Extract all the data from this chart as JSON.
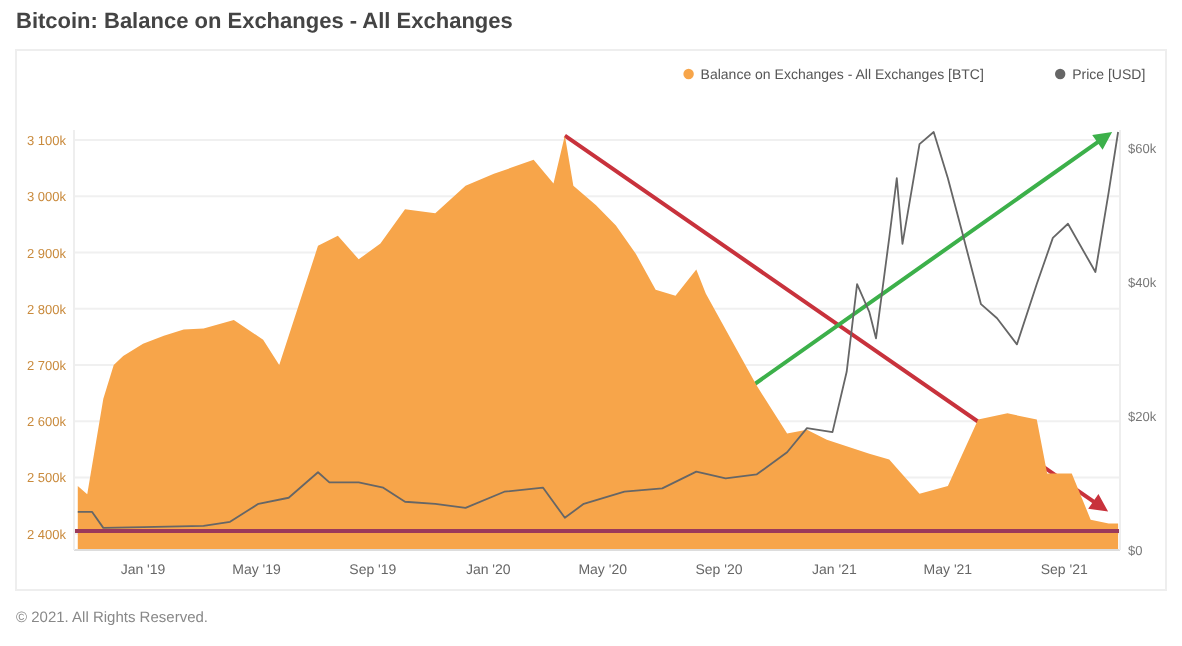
{
  "chart_data": {
    "type": "area",
    "title": "Bitcoin: Balance on Exchanges - All Exchanges",
    "annotations": [
      "© 2021. All Rights Reserved."
    ],
    "xlim": [
      "2018-10-20",
      "2021-10-30"
    ],
    "xticks": [
      {
        "value": "2019-01-01",
        "label": "Jan '19"
      },
      {
        "value": "2019-05-01",
        "label": "May '19"
      },
      {
        "value": "2019-09-01",
        "label": "Sep '19"
      },
      {
        "value": "2020-01-01",
        "label": "Jan '20"
      },
      {
        "value": "2020-05-01",
        "label": "May '20"
      },
      {
        "value": "2020-09-01",
        "label": "Sep '20"
      },
      {
        "value": "2021-01-01",
        "label": "Jan '21"
      },
      {
        "value": "2021-05-01",
        "label": "May '21"
      },
      {
        "value": "2021-09-01",
        "label": "Sep '21"
      }
    ],
    "ylim": [
      2371000,
      3118000
    ],
    "yticks": [
      {
        "value": 2400000,
        "label": "2 400k"
      },
      {
        "value": 2500000,
        "label": "2 500k"
      },
      {
        "value": 2600000,
        "label": "2 600k"
      },
      {
        "value": 2700000,
        "label": "2 700k"
      },
      {
        "value": 2800000,
        "label": "2 800k"
      },
      {
        "value": 2900000,
        "label": "2 900k"
      },
      {
        "value": 3000000,
        "label": "3 000k"
      },
      {
        "value": 3100000,
        "label": "3 100k"
      }
    ],
    "y2lim": [
      0,
      62700
    ],
    "y2ticks": [
      {
        "value": 0,
        "label": "$0"
      },
      {
        "value": 20000,
        "label": "$20k"
      },
      {
        "value": 40000,
        "label": "$40k"
      },
      {
        "value": 60000,
        "label": "$60k"
      }
    ],
    "grid": "y",
    "legend": "top right",
    "ref_lines": [
      {
        "axis": "y",
        "value": 2405000,
        "color": "#9b3a5a"
      }
    ],
    "series": [
      {
        "name": "Balance on Exchanges - All Exchanges [BTC]",
        "color": "#f7a54a",
        "x": [
          "2018-10-24",
          "2018-11-03",
          "2018-11-20",
          "2018-12-01",
          "2018-12-11",
          "2019-01-01",
          "2019-01-23",
          "2019-02-13",
          "2019-03-06",
          "2019-04-07",
          "2019-05-08",
          "2019-05-25",
          "2019-07-05",
          "2019-07-26",
          "2019-08-17",
          "2019-09-09",
          "2019-10-05",
          "2019-11-06",
          "2019-12-08",
          "2020-01-07",
          "2020-02-18",
          "2020-03-10",
          "2020-03-22",
          "2020-03-31",
          "2020-04-24",
          "2020-05-15",
          "2020-06-05",
          "2020-06-26",
          "2020-07-17",
          "2020-08-08",
          "2020-08-18",
          "2020-09-14",
          "2020-10-11",
          "2020-11-12",
          "2020-12-03",
          "2020-12-24",
          "2021-02-07",
          "2021-02-28",
          "2021-04-01",
          "2021-05-01",
          "2021-06-02",
          "2021-07-03",
          "2021-08-03",
          "2021-08-14",
          "2021-09-09",
          "2021-09-29",
          "2021-10-18",
          "2021-10-28"
        ],
        "values": [
          2485000,
          2470000,
          2640000,
          2700000,
          2716000,
          2738000,
          2752000,
          2763000,
          2765000,
          2780000,
          2745000,
          2700000,
          2912000,
          2930000,
          2888000,
          2916000,
          2977000,
          2970000,
          3019000,
          3040000,
          3065000,
          3023000,
          3108000,
          3019000,
          2984000,
          2948000,
          2898000,
          2834000,
          2823000,
          2870000,
          2827000,
          2745000,
          2663000,
          2578000,
          2585000,
          2567000,
          2542000,
          2532000,
          2471000,
          2485000,
          2603000,
          2614000,
          2603000,
          2507000,
          2507000,
          2425000,
          2418000,
          2418000
        ]
      },
      {
        "name": "Price [USD]",
        "type": "line",
        "axis": "y2",
        "color": "#666666",
        "x": [
          "2018-10-24",
          "2018-11-08",
          "2018-11-20",
          "2019-01-01",
          "2019-03-06",
          "2019-04-03",
          "2019-05-03",
          "2019-06-04",
          "2019-07-05",
          "2019-07-17",
          "2019-08-17",
          "2019-09-12",
          "2019-10-05",
          "2019-11-06",
          "2019-12-08",
          "2020-01-18",
          "2020-02-28",
          "2020-03-22",
          "2020-04-11",
          "2020-05-24",
          "2020-07-03",
          "2020-08-08",
          "2020-09-08",
          "2020-10-11",
          "2020-11-12",
          "2020-12-03",
          "2020-12-30",
          "2021-01-14",
          "2021-01-25",
          "2021-02-07",
          "2021-02-14",
          "2021-02-28",
          "2021-03-08",
          "2021-03-14",
          "2021-04-01",
          "2021-04-16",
          "2021-05-01",
          "2021-05-16",
          "2021-06-05",
          "2021-06-22",
          "2021-07-13",
          "2021-08-03",
          "2021-08-20",
          "2021-09-05",
          "2021-10-04",
          "2021-10-18",
          "2021-10-28"
        ],
        "values": [
          5700,
          5700,
          3300,
          3400,
          3600,
          4200,
          6900,
          7800,
          11600,
          10100,
          10100,
          9300,
          7200,
          6900,
          6300,
          8700,
          9300,
          4800,
          6900,
          8700,
          9200,
          11700,
          10700,
          11300,
          14600,
          18200,
          17600,
          26600,
          39700,
          35500,
          31600,
          46600,
          55500,
          45700,
          60600,
          62400,
          55500,
          47500,
          36700,
          34600,
          30700,
          39700,
          46600,
          48700,
          41500,
          53400,
          62400
        ]
      }
    ]
  }
}
